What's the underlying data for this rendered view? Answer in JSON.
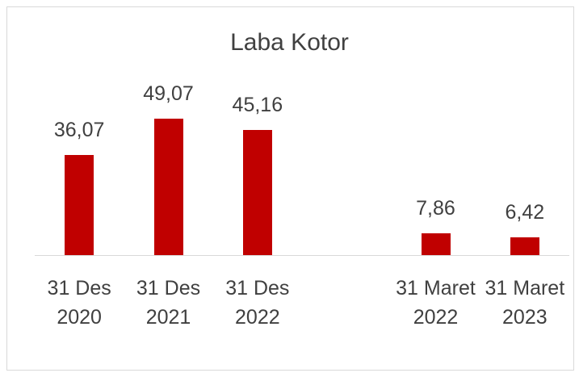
{
  "chart_data": {
    "type": "bar",
    "title": "Laba Kotor",
    "categories": [
      "31 Des 2020",
      "31 Des 2021",
      "31 Des 2022",
      null,
      "31 Maret 2022",
      "31 Maret 2023"
    ],
    "values": [
      36.07,
      49.07,
      45.16,
      null,
      7.86,
      6.42
    ],
    "value_labels": [
      "36,07",
      "49,07",
      "45,16",
      null,
      "7,86",
      "6,42"
    ],
    "color": "#c00000"
  }
}
